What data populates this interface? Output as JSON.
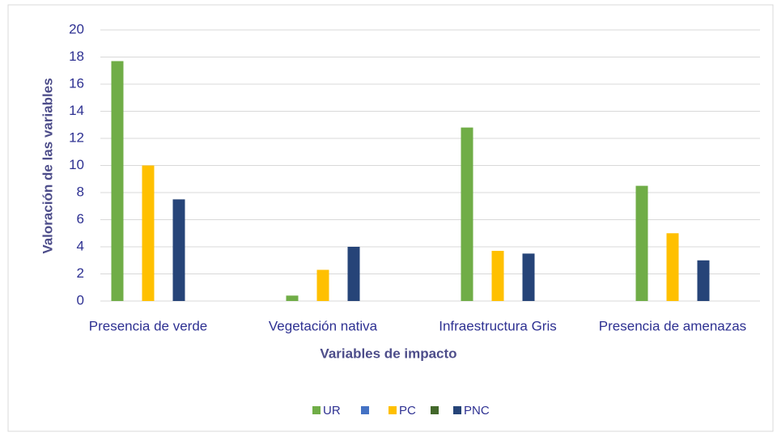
{
  "chart_data": {
    "type": "bar",
    "xlabel": "Variables de impacto",
    "ylabel": "Valoración de las variables",
    "categories": [
      "Presencia de verde",
      "Vegetación nativa",
      "Infraestructura Gris",
      "Presencia de amenazas"
    ],
    "series": [
      {
        "name": "UR",
        "color": "#70ad47",
        "values": [
          17.7,
          0.4,
          12.8,
          8.5
        ]
      },
      {
        "name": null,
        "color": "#4472c4",
        "values": [
          null,
          null,
          null,
          null
        ]
      },
      {
        "name": "PC",
        "color": "#ffc000",
        "values": [
          10,
          2.3,
          3.7,
          5
        ]
      },
      {
        "name": null,
        "color": "#43682b",
        "values": [
          null,
          null,
          null,
          null
        ]
      },
      {
        "name": "PNC",
        "color": "#264478",
        "values": [
          7.5,
          4,
          3.5,
          3
        ]
      }
    ],
    "ylim": [
      0,
      20
    ],
    "yticks": [
      0,
      2,
      4,
      6,
      8,
      10,
      12,
      14,
      16,
      18,
      20
    ],
    "grid": true,
    "legend": "bottom"
  }
}
